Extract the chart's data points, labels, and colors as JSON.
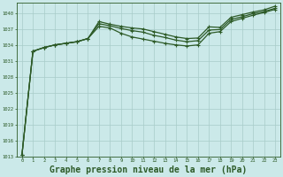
{
  "background_color": "#cbe9e9",
  "grid_color": "#a8ccc8",
  "line_color": "#2d5a27",
  "xlabel": "Graphe pression niveau de la mer (hPa)",
  "xlabel_fontsize": 7,
  "xlim": [
    -0.5,
    23.5
  ],
  "ylim": [
    1013,
    1042
  ],
  "yticks": [
    1013,
    1016,
    1019,
    1022,
    1025,
    1028,
    1031,
    1034,
    1037,
    1040
  ],
  "xticks": [
    0,
    1,
    2,
    3,
    4,
    5,
    6,
    7,
    8,
    9,
    10,
    11,
    12,
    13,
    14,
    15,
    16,
    17,
    18,
    19,
    20,
    21,
    22,
    23
  ],
  "line1_x": [
    0,
    1,
    2,
    3,
    4,
    5,
    6,
    7,
    8,
    9,
    10,
    11,
    12,
    13,
    14,
    15,
    16,
    17,
    18,
    19,
    20,
    21,
    22,
    23
  ],
  "line1_y": [
    1013.2,
    1032.8,
    1033.5,
    1034.0,
    1034.3,
    1034.6,
    1035.2,
    1038.4,
    1037.9,
    1037.5,
    1037.2,
    1037.0,
    1036.5,
    1036.0,
    1035.5,
    1035.2,
    1035.3,
    1037.4,
    1037.3,
    1039.2,
    1039.7,
    1040.2,
    1040.6,
    1041.3
  ],
  "line2_x": [
    0,
    1,
    2,
    3,
    4,
    5,
    6,
    7,
    8,
    9,
    10,
    11,
    12,
    13,
    14,
    15,
    16,
    17,
    18,
    19,
    20,
    21,
    22,
    23
  ],
  "line2_y": [
    1013.2,
    1032.8,
    1033.5,
    1034.0,
    1034.3,
    1034.6,
    1035.2,
    1038.0,
    1037.6,
    1037.1,
    1036.7,
    1036.4,
    1035.8,
    1035.4,
    1034.9,
    1034.6,
    1034.8,
    1036.8,
    1036.9,
    1038.8,
    1039.3,
    1039.9,
    1040.3,
    1040.9
  ],
  "line3_x": [
    0,
    1,
    2,
    3,
    4,
    5,
    6,
    7,
    8,
    9,
    10,
    11,
    12,
    13,
    14,
    15,
    16,
    17,
    18,
    19,
    20,
    21,
    22,
    23
  ],
  "line3_y": [
    1013.2,
    1032.8,
    1033.5,
    1034.0,
    1034.3,
    1034.6,
    1035.2,
    1037.5,
    1037.2,
    1036.2,
    1035.5,
    1035.1,
    1034.7,
    1034.3,
    1034.0,
    1033.8,
    1034.0,
    1036.2,
    1036.5,
    1038.4,
    1039.0,
    1039.6,
    1040.1,
    1040.7
  ]
}
